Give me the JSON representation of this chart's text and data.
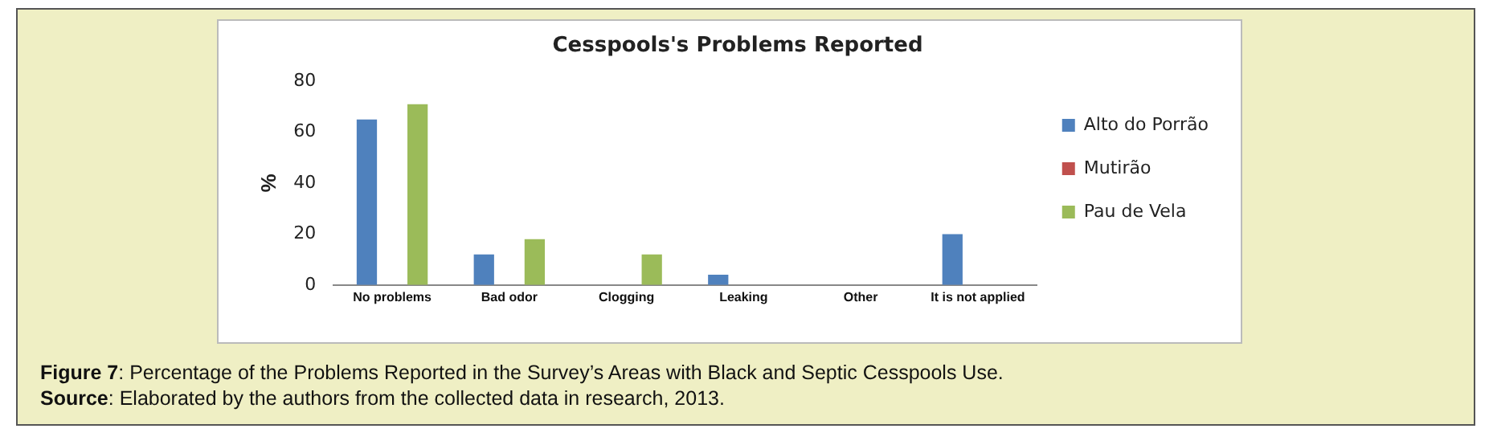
{
  "chart_data": {
    "type": "bar",
    "title": "Cesspools's Problems Reported",
    "ylabel": "%",
    "categories": [
      "No problems",
      "Bad odor",
      "Clogging",
      "Leaking",
      "Other",
      "It is not applied"
    ],
    "series": [
      {
        "name": "Alto do Porrão",
        "color": "#4f81bd",
        "values": [
          65,
          12,
          0,
          4,
          0,
          20
        ]
      },
      {
        "name": "Mutirão",
        "color": "#c0504d",
        "values": [
          0,
          0,
          0,
          0,
          0,
          0
        ]
      },
      {
        "name": "Pau de Vela",
        "color": "#9bbb59",
        "values": [
          71,
          18,
          12,
          0,
          0,
          0
        ]
      }
    ],
    "ylim": [
      0,
      80
    ],
    "yticks": [
      0,
      20,
      40,
      60,
      80
    ],
    "grid": false,
    "legend": "right",
    "annotations": [
      "Figure 7: Percentage of the Problems Reported in the Survey’s Areas with Black and Septic Cesspools Use.",
      "Source: Elaborated by the authors from the collected data in research, 2013."
    ]
  }
}
